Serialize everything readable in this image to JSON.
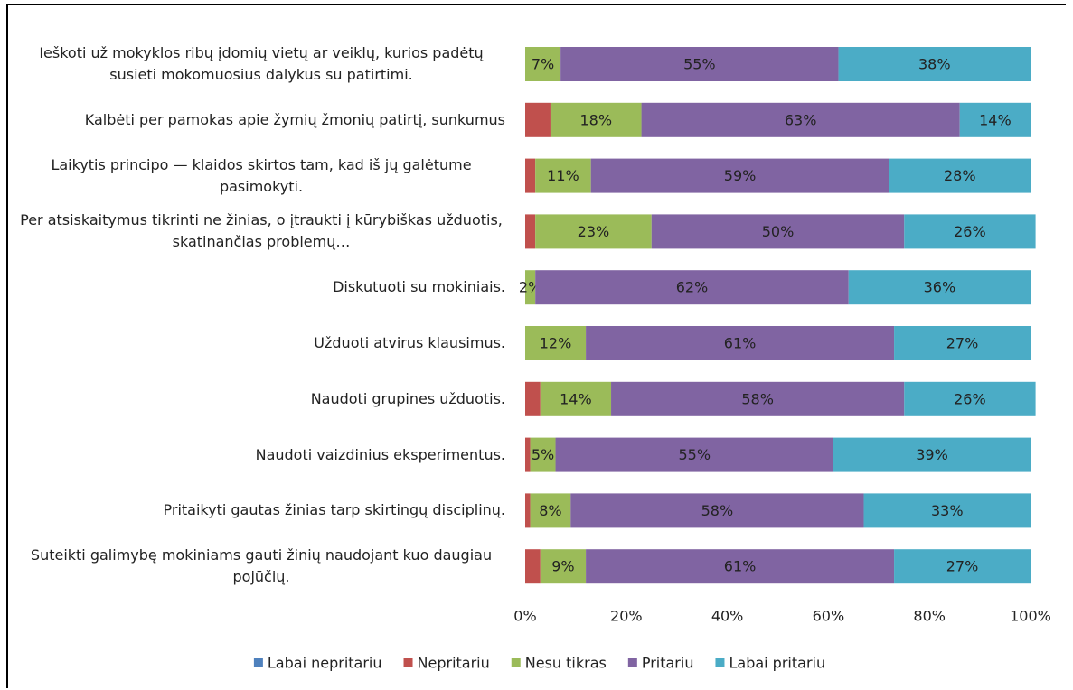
{
  "chart_data": {
    "type": "stacked-bar-horizontal",
    "categories": [
      "Ieškoti už mokyklos ribų įdomių vietų ar veiklų, kurios padėtų susieti mokomuosius dalykus su patirtimi.",
      "Kalbėti per pamokas apie žymių žmonių patirtį, sunkumus",
      "Laikytis principo —  klaidos skirtos tam, kad iš jų galėtume pasimokyti.",
      "Per atsiskaitymus tikrinti ne žinias, o įtraukti į kūrybiškas užduotis, skatinančias problemų…",
      "Diskutuoti su mokiniais.",
      "Užduoti atvirus klausimus.",
      "Naudoti grupines užduotis.",
      "Naudoti vaizdinius eksperimentus.",
      "Pritaikyti gautas žinias tarp skirtingų disciplinų.",
      "Suteikti galimybę mokiniams gauti žinių naudojant kuo daugiau pojūčių."
    ],
    "series": [
      {
        "name": "Labai nepritariu",
        "color": "#4f81bd",
        "values": [
          0,
          0,
          0,
          0,
          0,
          0,
          0,
          0,
          0,
          0
        ]
      },
      {
        "name": "Nepritariu",
        "color": "#c0504d",
        "values": [
          0,
          5,
          2,
          2,
          0,
          0,
          3,
          1,
          1,
          3
        ]
      },
      {
        "name": "Nesu tikras",
        "color": "#9bbb59",
        "values": [
          7,
          18,
          11,
          23,
          2,
          12,
          14,
          5,
          8,
          9
        ],
        "value_labels": [
          "7%",
          "18%",
          "11%",
          "23%",
          "2%",
          "12%",
          "14%",
          "5%",
          "8%",
          "9%"
        ]
      },
      {
        "name": "Pritariu",
        "color": "#8064a2",
        "values": [
          55,
          63,
          59,
          50,
          62,
          61,
          58,
          55,
          58,
          61
        ],
        "value_labels": [
          "55%",
          "63%",
          "59%",
          "50%",
          "62%",
          "61%",
          "58%",
          "55%",
          "58%",
          "61%"
        ]
      },
      {
        "name": "Labai pritariu",
        "color": "#4bacc6",
        "values": [
          38,
          14,
          28,
          26,
          36,
          27,
          26,
          39,
          33,
          27
        ],
        "value_labels": [
          "38%",
          "14%",
          "28%",
          "26%",
          "36%",
          "27%",
          "26%",
          "39%",
          "33%",
          "27%"
        ]
      }
    ],
    "xlim": [
      0,
      100
    ],
    "xticks": [
      {
        "value": 0,
        "label": "0%"
      },
      {
        "value": 20,
        "label": "20%"
      },
      {
        "value": 40,
        "label": "40%"
      },
      {
        "value": 60,
        "label": "60%"
      },
      {
        "value": 80,
        "label": "80%"
      },
      {
        "value": 100,
        "label": "100%"
      }
    ],
    "legend": "bottom"
  }
}
